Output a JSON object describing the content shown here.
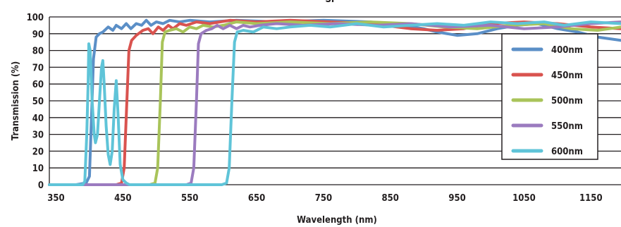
{
  "chart_data": {
    "type": "line",
    "title": "SP",
    "xlabel": "Wavelength (nm)",
    "ylabel": "Transmission (%)",
    "xlim": [
      340,
      1195
    ],
    "ylim": [
      0,
      100
    ],
    "x_ticks": [
      "350",
      "450",
      "550",
      "650",
      "750",
      "850",
      "950",
      "1050",
      "1150"
    ],
    "y_ticks": [
      "0",
      "10",
      "20",
      "30",
      "40",
      "50",
      "60",
      "70",
      "80",
      "90",
      "100"
    ],
    "grid": "horizontal",
    "legend_position": "right",
    "series": [
      {
        "name": "400nm",
        "color": "#5b8fc7",
        "points": [
          [
            340,
            0
          ],
          [
            380,
            0
          ],
          [
            395,
            1
          ],
          [
            400,
            5
          ],
          [
            403,
            40
          ],
          [
            406,
            75
          ],
          [
            410,
            88
          ],
          [
            415,
            90
          ],
          [
            420,
            91
          ],
          [
            428,
            94
          ],
          [
            435,
            92
          ],
          [
            440,
            95
          ],
          [
            448,
            93
          ],
          [
            455,
            96
          ],
          [
            462,
            93
          ],
          [
            470,
            96
          ],
          [
            478,
            95
          ],
          [
            485,
            98
          ],
          [
            492,
            95
          ],
          [
            500,
            97
          ],
          [
            510,
            96
          ],
          [
            520,
            98
          ],
          [
            535,
            97
          ],
          [
            550,
            98
          ],
          [
            580,
            97
          ],
          [
            620,
            98
          ],
          [
            680,
            97
          ],
          [
            750,
            98
          ],
          [
            820,
            97
          ],
          [
            870,
            95
          ],
          [
            900,
            93
          ],
          [
            920,
            91
          ],
          [
            950,
            89
          ],
          [
            980,
            90
          ],
          [
            1010,
            93
          ],
          [
            1040,
            95
          ],
          [
            1070,
            96
          ],
          [
            1100,
            93
          ],
          [
            1130,
            91
          ],
          [
            1160,
            88
          ],
          [
            1195,
            86
          ]
        ]
      },
      {
        "name": "450nm",
        "color": "#d9534f",
        "points": [
          [
            340,
            0
          ],
          [
            440,
            0
          ],
          [
            448,
            1
          ],
          [
            452,
            10
          ],
          [
            456,
            50
          ],
          [
            459,
            80
          ],
          [
            463,
            86
          ],
          [
            470,
            89
          ],
          [
            480,
            92
          ],
          [
            488,
            93
          ],
          [
            495,
            90
          ],
          [
            503,
            94
          ],
          [
            510,
            92
          ],
          [
            518,
            95
          ],
          [
            525,
            93
          ],
          [
            535,
            96
          ],
          [
            545,
            95
          ],
          [
            560,
            97
          ],
          [
            580,
            96
          ],
          [
            610,
            98
          ],
          [
            650,
            97
          ],
          [
            700,
            98
          ],
          [
            760,
            97
          ],
          [
            820,
            96
          ],
          [
            880,
            93
          ],
          [
            920,
            92
          ],
          [
            960,
            93
          ],
          [
            1000,
            96
          ],
          [
            1050,
            97
          ],
          [
            1100,
            96
          ],
          [
            1150,
            94
          ],
          [
            1195,
            93
          ]
        ]
      },
      {
        "name": "500nm",
        "color": "#a9c45a",
        "points": [
          [
            340,
            0
          ],
          [
            490,
            0
          ],
          [
            498,
            1
          ],
          [
            502,
            10
          ],
          [
            506,
            50
          ],
          [
            509,
            85
          ],
          [
            513,
            91
          ],
          [
            520,
            92
          ],
          [
            530,
            93
          ],
          [
            540,
            91
          ],
          [
            550,
            94
          ],
          [
            560,
            93
          ],
          [
            570,
            95
          ],
          [
            585,
            94
          ],
          [
            600,
            95
          ],
          [
            620,
            97
          ],
          [
            650,
            96
          ],
          [
            700,
            97
          ],
          [
            760,
            96
          ],
          [
            820,
            97
          ],
          [
            880,
            96
          ],
          [
            930,
            94
          ],
          [
            980,
            93
          ],
          [
            1030,
            95
          ],
          [
            1080,
            96
          ],
          [
            1120,
            93
          ],
          [
            1160,
            92
          ],
          [
            1195,
            94
          ]
        ]
      },
      {
        "name": "550nm",
        "color": "#9b7bbf",
        "points": [
          [
            340,
            0
          ],
          [
            545,
            0
          ],
          [
            552,
            1
          ],
          [
            556,
            10
          ],
          [
            560,
            50
          ],
          [
            563,
            84
          ],
          [
            567,
            90
          ],
          [
            575,
            92
          ],
          [
            583,
            93
          ],
          [
            591,
            95
          ],
          [
            600,
            93
          ],
          [
            610,
            95
          ],
          [
            620,
            93
          ],
          [
            630,
            95
          ],
          [
            640,
            94
          ],
          [
            655,
            95
          ],
          [
            680,
            96
          ],
          [
            720,
            95
          ],
          [
            770,
            96
          ],
          [
            830,
            95
          ],
          [
            880,
            96
          ],
          [
            940,
            94
          ],
          [
            1000,
            95
          ],
          [
            1050,
            93
          ],
          [
            1100,
            94
          ],
          [
            1150,
            96
          ],
          [
            1195,
            97
          ]
        ]
      },
      {
        "name": "600nm",
        "color": "#5fc4d8",
        "points": [
          [
            340,
            0
          ],
          [
            390,
            0
          ],
          [
            393,
            2
          ],
          [
            396,
            30
          ],
          [
            398,
            60
          ],
          [
            399,
            84
          ],
          [
            401,
            80
          ],
          [
            404,
            50
          ],
          [
            407,
            30
          ],
          [
            409,
            25
          ],
          [
            412,
            30
          ],
          [
            415,
            50
          ],
          [
            418,
            70
          ],
          [
            420,
            74
          ],
          [
            422,
            60
          ],
          [
            425,
            35
          ],
          [
            428,
            18
          ],
          [
            431,
            12
          ],
          [
            434,
            20
          ],
          [
            437,
            45
          ],
          [
            440,
            62
          ],
          [
            443,
            40
          ],
          [
            446,
            12
          ],
          [
            450,
            3
          ],
          [
            455,
            1
          ],
          [
            460,
            0
          ],
          [
            598,
            0
          ],
          [
            605,
            1
          ],
          [
            609,
            10
          ],
          [
            613,
            50
          ],
          [
            617,
            85
          ],
          [
            621,
            91
          ],
          [
            630,
            92
          ],
          [
            645,
            91
          ],
          [
            660,
            94
          ],
          [
            680,
            93
          ],
          [
            700,
            94
          ],
          [
            730,
            95
          ],
          [
            760,
            94
          ],
          [
            800,
            96
          ],
          [
            840,
            94
          ],
          [
            880,
            95
          ],
          [
            920,
            96
          ],
          [
            960,
            95
          ],
          [
            1000,
            97
          ],
          [
            1040,
            96
          ],
          [
            1080,
            97
          ],
          [
            1110,
            95
          ],
          [
            1150,
            97
          ],
          [
            1195,
            96
          ]
        ]
      }
    ]
  }
}
